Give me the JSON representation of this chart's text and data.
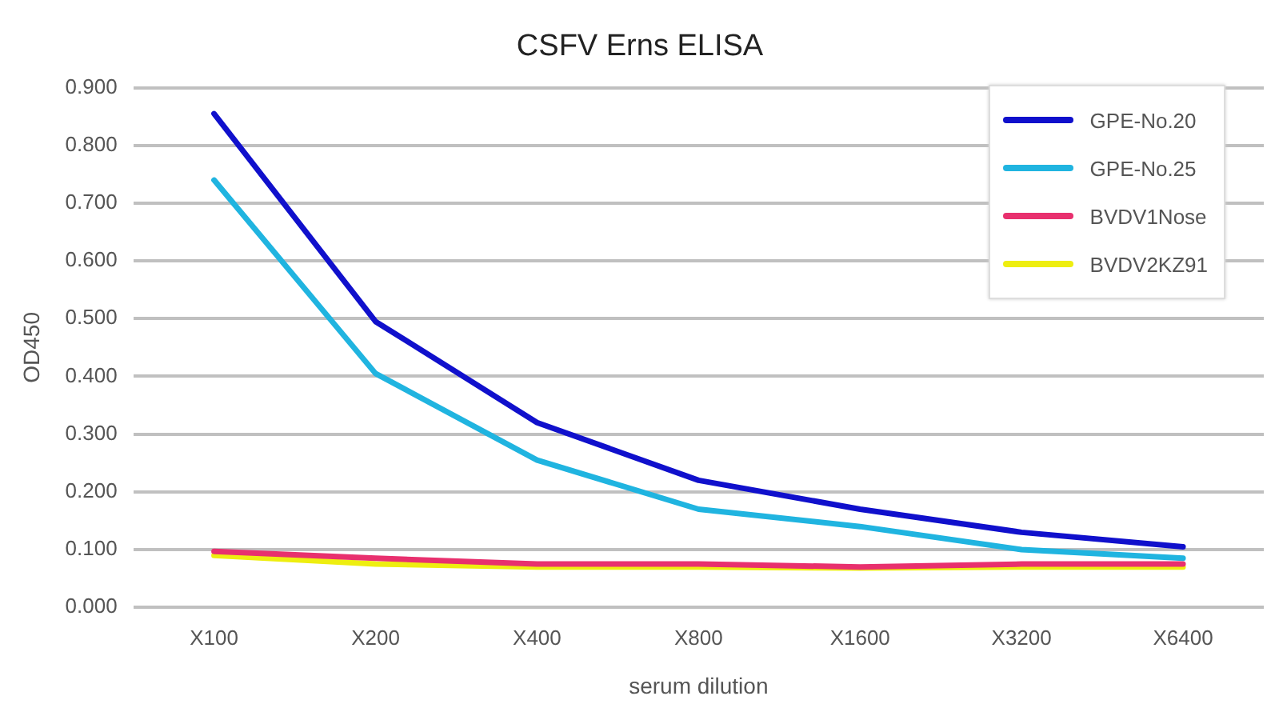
{
  "chart_data": {
    "type": "line",
    "title": "CSFV Erns ELISA",
    "xlabel": "serum dilution",
    "ylabel": "OD450",
    "categories": [
      "X100",
      "X200",
      "X400",
      "X800",
      "X1600",
      "X3200",
      "X6400"
    ],
    "series": [
      {
        "name": "GPE-No.20",
        "color": "#1010cc",
        "values": [
          0.855,
          0.495,
          0.32,
          0.22,
          0.17,
          0.13,
          0.105
        ]
      },
      {
        "name": "GPE-No.25",
        "color": "#20b4e0",
        "values": [
          0.74,
          0.405,
          0.255,
          0.17,
          0.14,
          0.1,
          0.085
        ]
      },
      {
        "name": "BVDV1Nose",
        "color": "#e8306e",
        "values": [
          0.097,
          0.085,
          0.075,
          0.075,
          0.07,
          0.075,
          0.075
        ]
      },
      {
        "name": "BVDV2KZ91",
        "color": "#eeee10",
        "values": [
          0.09,
          0.075,
          0.07,
          0.07,
          0.068,
          0.07,
          0.07
        ]
      }
    ],
    "ylim": [
      0,
      0.9
    ],
    "yticks": [
      {
        "value": 0,
        "label": "0.000"
      },
      {
        "value": 0.1,
        "label": "0.100"
      },
      {
        "value": 0.2,
        "label": "0.200"
      },
      {
        "value": 0.3,
        "label": "0.300"
      },
      {
        "value": 0.4,
        "label": "0.400"
      },
      {
        "value": 0.5,
        "label": "0.500"
      },
      {
        "value": 0.6,
        "label": "0.600"
      },
      {
        "value": 0.7,
        "label": "0.700"
      },
      {
        "value": 0.8,
        "label": "0.800"
      },
      {
        "value": 0.9,
        "label": "0.900"
      }
    ],
    "grid": "y",
    "legend": "top right",
    "marker": "none",
    "line_style": "solid"
  }
}
